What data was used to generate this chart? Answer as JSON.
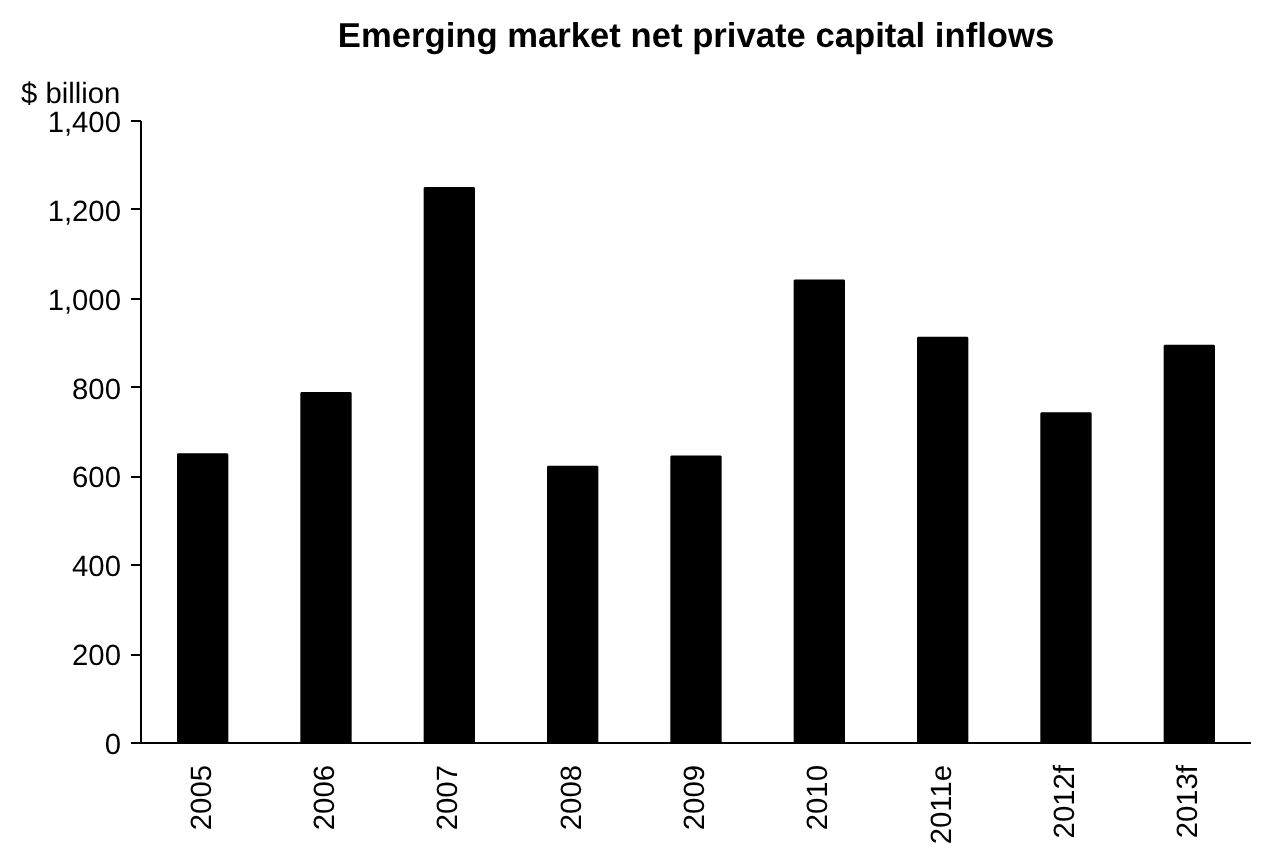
{
  "chart_data": {
    "type": "bar",
    "title": "Emerging market net private capital inflows",
    "ylabel": "$ billion",
    "categories": [
      "2005",
      "2006",
      "2007",
      "2008",
      "2009",
      "2010",
      "2011e",
      "2012f",
      "2013f"
    ],
    "values": [
      650,
      788,
      1249,
      622,
      645,
      1041,
      912,
      742,
      894
    ],
    "color": "#000000",
    "ylim": [
      0,
      1400
    ],
    "yticks": [
      {
        "value": 0,
        "label": "0"
      },
      {
        "value": 200,
        "label": "200"
      },
      {
        "value": 400,
        "label": "400"
      },
      {
        "value": 600,
        "label": "600"
      },
      {
        "value": 800,
        "label": "800"
      },
      {
        "value": 1000,
        "label": "1,000"
      },
      {
        "value": 1200,
        "label": "1,200"
      },
      {
        "value": 1400,
        "label": "1,400"
      }
    ],
    "grid": false
  }
}
